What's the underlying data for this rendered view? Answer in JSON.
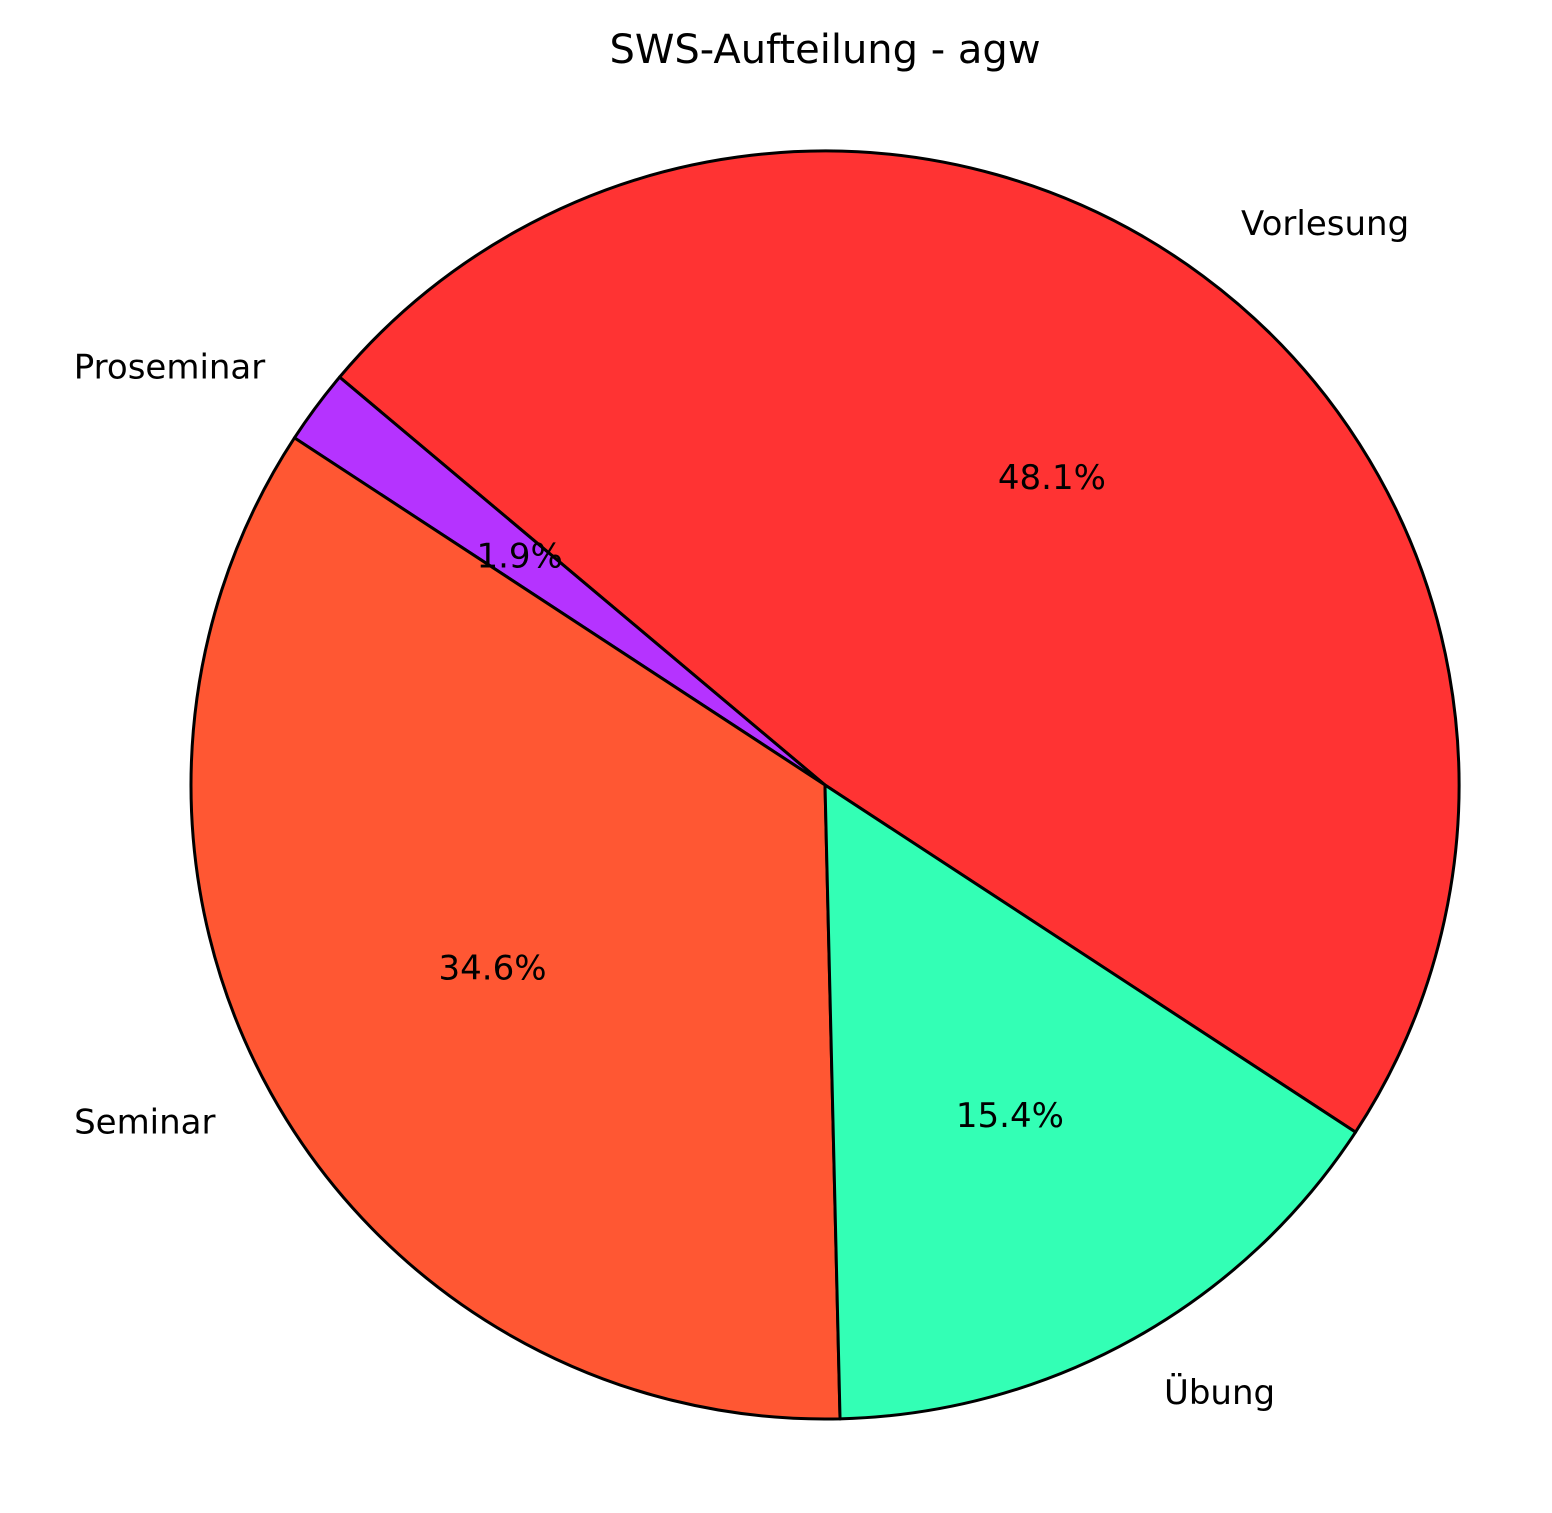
{
  "chart_data": {
    "type": "pie",
    "title": "SWS-Aufteilung - agw",
    "categories": [
      "Vorlesung",
      "Proseminar",
      "Seminar",
      "Übung"
    ],
    "values": [
      48.1,
      1.9,
      34.6,
      15.4
    ],
    "value_labels": [
      "48.1%",
      "1.9%",
      "34.6%",
      "15.4%"
    ],
    "colors": [
      "#ff3333",
      "#b533ff",
      "#ff5733",
      "#33ffb5"
    ]
  }
}
